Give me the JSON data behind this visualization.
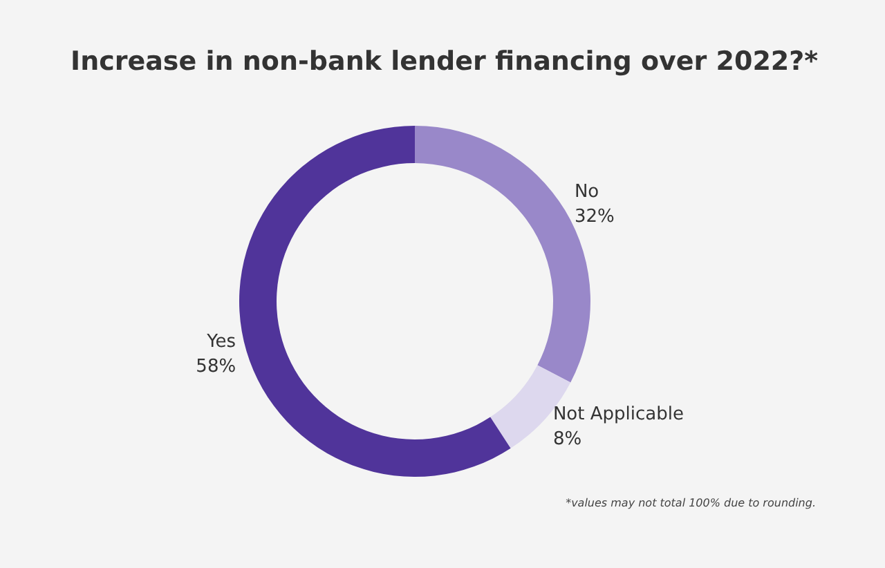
{
  "chart_data": {
    "type": "donut",
    "title": "Increase in non-bank lender financing over 2022?*",
    "categories": [
      "No",
      "Not Applicable",
      "Yes"
    ],
    "values": [
      32,
      8,
      58
    ],
    "value_labels": [
      "32%",
      "8%",
      "58%"
    ],
    "colors": [
      "#9988c9",
      "#ddd8ee",
      "#50349a"
    ],
    "legend": false,
    "annotations": [
      "*values may not total 100% due to rounding."
    ]
  }
}
